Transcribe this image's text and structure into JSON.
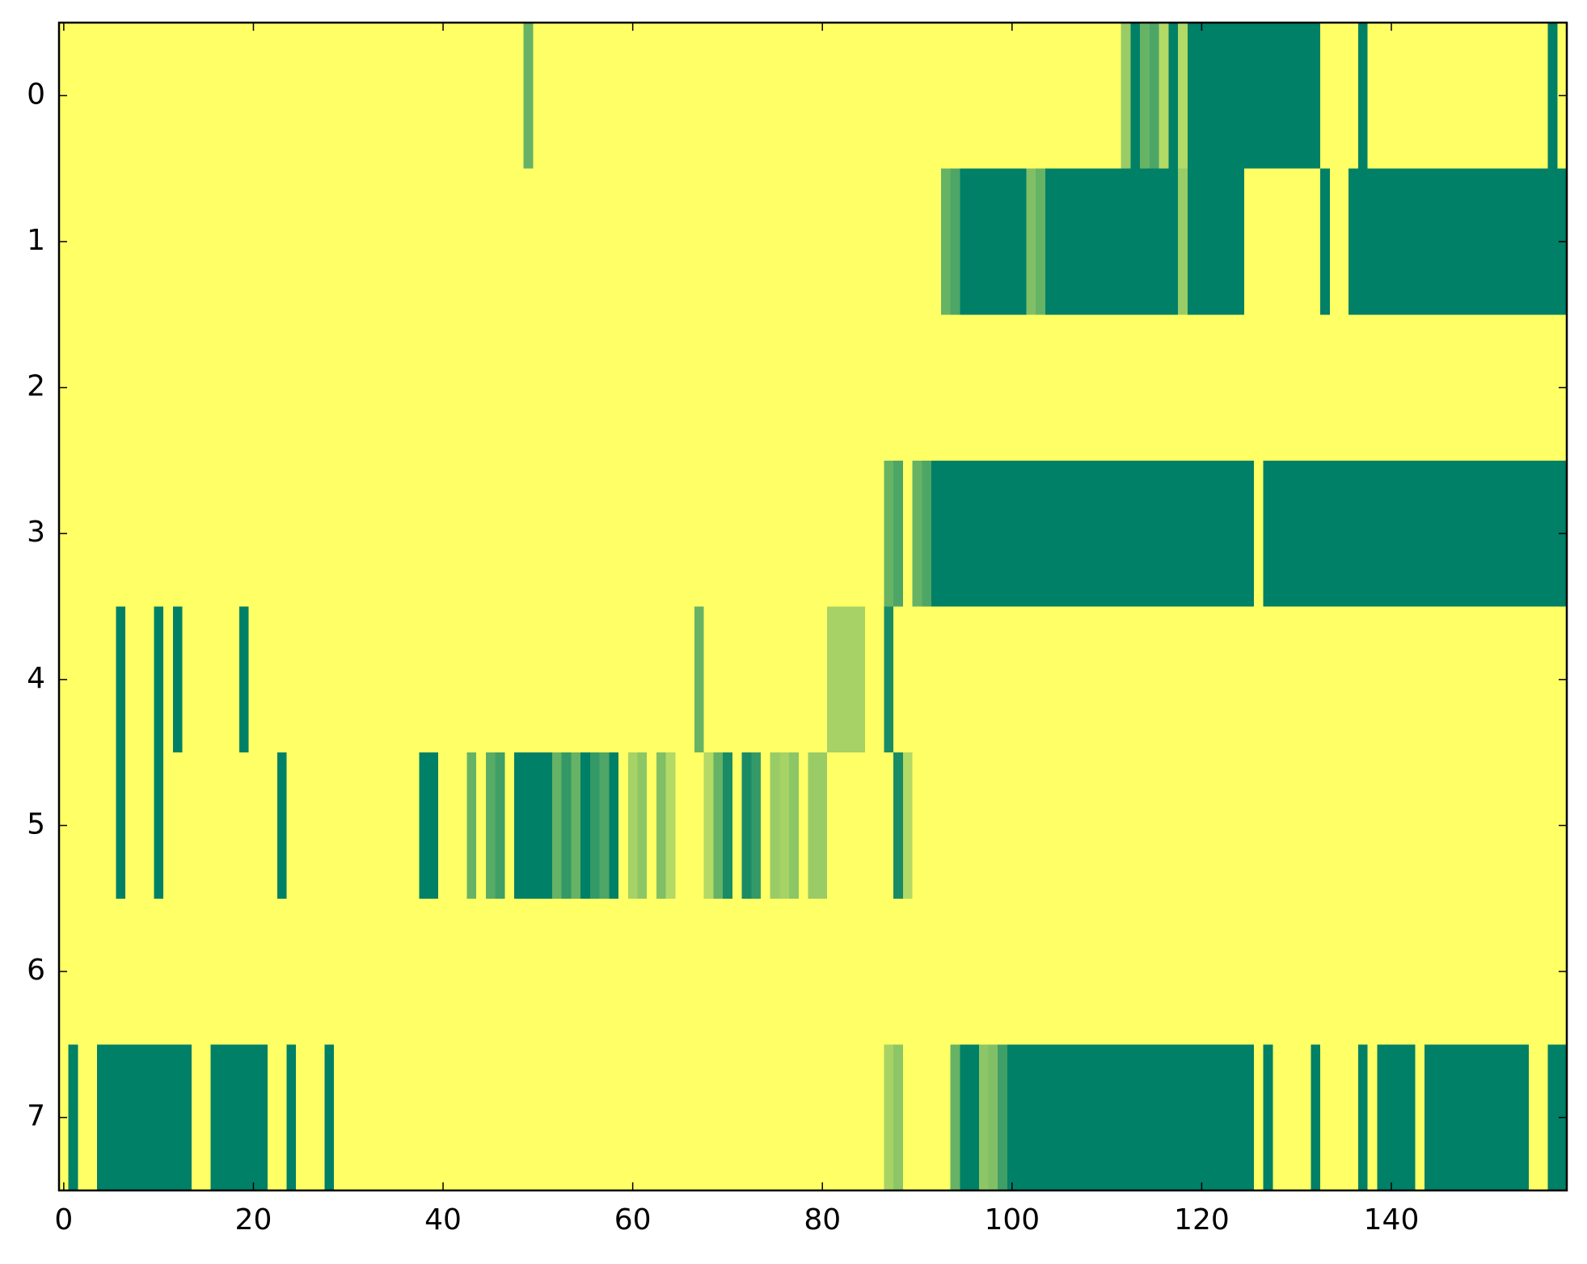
{
  "chart_data": {
    "type": "heatmap",
    "colormap": "summer_r",
    "clim": [
      0,
      1
    ],
    "xlim": [
      -0.5,
      158.5
    ],
    "ylim": [
      7.5,
      -0.5
    ],
    "xticks": [
      0,
      20,
      40,
      60,
      80,
      100,
      120,
      140
    ],
    "yticks": [
      0,
      1,
      2,
      3,
      4,
      5,
      6,
      7
    ],
    "z": [
      [
        0,
        0,
        0,
        0,
        0,
        0,
        0,
        0,
        0,
        0,
        0,
        0,
        0,
        0,
        0,
        0,
        0,
        0,
        0,
        0,
        0,
        0,
        0,
        0,
        0,
        0,
        0,
        0,
        0,
        0,
        0,
        0,
        0,
        0,
        0,
        0,
        0,
        0,
        0,
        0,
        0,
        0,
        0,
        0,
        0,
        0,
        0,
        0,
        0,
        0.6,
        0,
        0,
        0,
        0,
        0,
        0,
        0,
        0,
        0,
        0,
        0,
        0,
        0,
        0,
        0,
        0,
        0,
        0,
        0,
        0,
        0,
        0,
        0,
        0,
        0,
        0,
        0,
        0,
        0,
        0,
        0,
        0,
        0,
        0,
        0,
        0,
        0,
        0,
        0,
        0,
        0,
        0,
        0,
        0,
        0,
        0,
        0,
        0,
        0,
        0,
        0,
        0,
        0,
        0,
        0,
        0,
        0,
        0,
        0,
        0,
        0,
        0,
        0.4,
        1,
        0.6,
        0.7,
        0.3,
        1,
        0.3,
        1,
        1,
        1,
        1,
        1,
        1,
        1,
        1,
        1,
        1,
        1,
        1,
        1,
        1,
        0,
        0,
        0,
        0,
        1,
        0,
        0,
        0,
        0,
        0,
        0,
        0,
        0,
        0,
        0,
        0,
        0,
        0,
        0,
        0,
        0,
        0,
        0,
        0,
        1,
        0
      ],
      [
        0,
        0,
        0,
        0,
        0,
        0,
        0,
        0,
        0,
        0,
        0,
        0,
        0,
        0,
        0,
        0,
        0,
        0,
        0,
        0,
        0,
        0,
        0,
        0,
        0,
        0,
        0,
        0,
        0,
        0,
        0,
        0,
        0,
        0,
        0,
        0,
        0,
        0,
        0,
        0,
        0,
        0,
        0,
        0,
        0,
        0,
        0,
        0,
        0,
        0,
        0,
        0,
        0,
        0,
        0,
        0,
        0,
        0,
        0,
        0,
        0,
        0,
        0,
        0,
        0,
        0,
        0,
        0,
        0,
        0,
        0,
        0,
        0,
        0,
        0,
        0,
        0,
        0,
        0,
        0,
        0,
        0,
        0,
        0,
        0,
        0,
        0,
        0,
        0,
        0,
        0,
        0,
        0,
        0.6,
        0.7,
        1,
        1,
        1,
        1,
        1,
        1,
        1,
        0.5,
        0.6,
        1,
        1,
        1,
        1,
        1,
        1,
        1,
        1,
        1,
        1,
        1,
        1,
        1,
        1,
        0.4,
        1,
        1,
        1,
        1,
        1,
        1,
        0,
        0,
        0,
        0,
        0,
        0,
        0,
        0,
        1,
        0,
        0,
        1,
        1,
        1,
        1,
        1,
        1,
        1,
        1,
        1,
        1,
        1,
        1,
        1,
        1,
        1,
        1,
        1,
        1,
        1,
        1,
        1,
        1,
        1
      ],
      [
        0,
        0,
        0,
        0,
        0,
        0,
        0,
        0,
        0,
        0,
        0,
        0,
        0,
        0,
        0,
        0,
        0,
        0,
        0,
        0,
        0,
        0,
        0,
        0,
        0,
        0,
        0,
        0,
        0,
        0,
        0,
        0,
        0,
        0,
        0,
        0,
        0,
        0,
        0,
        0,
        0,
        0,
        0,
        0,
        0,
        0,
        0,
        0,
        0,
        0,
        0,
        0,
        0,
        0,
        0,
        0,
        0,
        0,
        0,
        0,
        0,
        0,
        0,
        0,
        0,
        0,
        0,
        0,
        0,
        0,
        0,
        0,
        0,
        0,
        0,
        0,
        0,
        0,
        0,
        0,
        0,
        0,
        0,
        0,
        0,
        0,
        0,
        0,
        0,
        0,
        0,
        0,
        0,
        0,
        0,
        0,
        0,
        0,
        0,
        0,
        0,
        0,
        0,
        0,
        0,
        0,
        0,
        0,
        0,
        0,
        0,
        0,
        0,
        0,
        0,
        0,
        0,
        0,
        0,
        0,
        0,
        0,
        0,
        0,
        0,
        0,
        0,
        0,
        0,
        0,
        0,
        0,
        0,
        0,
        0,
        0,
        0,
        0,
        0,
        0,
        0,
        0,
        0,
        0,
        0,
        0,
        0,
        0,
        0,
        0,
        0,
        0,
        0,
        0,
        0,
        0,
        0,
        0,
        0
      ],
      [
        0,
        0,
        0,
        0,
        0,
        0,
        0,
        0,
        0,
        0,
        0,
        0,
        0,
        0,
        0,
        0,
        0,
        0,
        0,
        0,
        0,
        0,
        0,
        0,
        0,
        0,
        0,
        0,
        0,
        0,
        0,
        0,
        0,
        0,
        0,
        0,
        0,
        0,
        0,
        0,
        0,
        0,
        0,
        0,
        0,
        0,
        0,
        0,
        0,
        0,
        0,
        0,
        0,
        0,
        0,
        0,
        0,
        0,
        0,
        0,
        0,
        0,
        0,
        0,
        0,
        0,
        0,
        0,
        0,
        0,
        0,
        0,
        0,
        0,
        0,
        0,
        0,
        0,
        0,
        0,
        0,
        0,
        0,
        0,
        0,
        0,
        0,
        0.6,
        0.7,
        0,
        0.6,
        0.7,
        1,
        1,
        1,
        1,
        1,
        1,
        1,
        1,
        1,
        1,
        1,
        1,
        1,
        1,
        1,
        1,
        1,
        1,
        1,
        1,
        1,
        1,
        1,
        1,
        1,
        1,
        1,
        1,
        1,
        1,
        1,
        1,
        1,
        1,
        0,
        1,
        1,
        1,
        1,
        1,
        1,
        1,
        1,
        1,
        1,
        1,
        1,
        1,
        1,
        1,
        1,
        1,
        1,
        1,
        1,
        1,
        1,
        1,
        1,
        1,
        1,
        1,
        1,
        1,
        1,
        1,
        1
      ],
      [
        0,
        0,
        0,
        0,
        0,
        0,
        1,
        0,
        0,
        0,
        1,
        0,
        1,
        0,
        0,
        0,
        0,
        0,
        0,
        1,
        0,
        0,
        0,
        0,
        0,
        0,
        0,
        0,
        0,
        0,
        0,
        0,
        0,
        0,
        0,
        0,
        0,
        0,
        0,
        0,
        0,
        0,
        0,
        0,
        0,
        0,
        0,
        0,
        0,
        0,
        0,
        0,
        0,
        0,
        0,
        0,
        0,
        0,
        0,
        0,
        0,
        0,
        0,
        0,
        0,
        0,
        0,
        0.6,
        0,
        0,
        0,
        0,
        0,
        0,
        0,
        0,
        0,
        0,
        0,
        0,
        0,
        0.35,
        0.35,
        0.35,
        0.35,
        0,
        0,
        0.9,
        0,
        0,
        0,
        0,
        0,
        0,
        0,
        0,
        0,
        0,
        0,
        0,
        0,
        0,
        0,
        0,
        0,
        0,
        0,
        0,
        0,
        0,
        0,
        0,
        0,
        0,
        0,
        0,
        0,
        0,
        0,
        0,
        0,
        0,
        0,
        0,
        0,
        0,
        0,
        0,
        0,
        0,
        0,
        0,
        0,
        0,
        0,
        0,
        0,
        0,
        0,
        0,
        0,
        0,
        0,
        0,
        0,
        0,
        0,
        0,
        0,
        0,
        0,
        0,
        0,
        0,
        0,
        0,
        0,
        0,
        0
      ],
      [
        0,
        0,
        0,
        0,
        0,
        0,
        1,
        0,
        0,
        0,
        1,
        0,
        0,
        0,
        0,
        0,
        0,
        0,
        0,
        0,
        0,
        0,
        0,
        1,
        0,
        0,
        0,
        0,
        0,
        0,
        0,
        0,
        0,
        0,
        0,
        0,
        0,
        0,
        1,
        1,
        0,
        0,
        0,
        0.6,
        0,
        0.65,
        0.75,
        0,
        1,
        1,
        1,
        1,
        0.6,
        0.8,
        0.6,
        1,
        0.8,
        0.7,
        1,
        0,
        0.35,
        0.45,
        0,
        0.5,
        0.3,
        0,
        0,
        0,
        0.3,
        0.6,
        0.9,
        0,
        0.9,
        0.8,
        0,
        0.4,
        0.35,
        0.45,
        0,
        0.4,
        0.4,
        0,
        0,
        0,
        0,
        0,
        0,
        0,
        0.9,
        0.3,
        0,
        0,
        0,
        0,
        0,
        0,
        0,
        0,
        0,
        0,
        0,
        0,
        0,
        0,
        0,
        0,
        0,
        0,
        0,
        0,
        0,
        0,
        0,
        0,
        0,
        0,
        0,
        0,
        0,
        0,
        0,
        0,
        0,
        0,
        0,
        0,
        0,
        0,
        0,
        0,
        0,
        0,
        0,
        0,
        0,
        0,
        0,
        0,
        0,
        0,
        0,
        0,
        0,
        0,
        0,
        0,
        0,
        0,
        0,
        0,
        0,
        0,
        0,
        0,
        0,
        0,
        0,
        0,
        0
      ],
      [
        0,
        0,
        0,
        0,
        0,
        0,
        0,
        0,
        0,
        0,
        0,
        0,
        0,
        0,
        0,
        0,
        0,
        0,
        0,
        0,
        0,
        0,
        0,
        0,
        0,
        0,
        0,
        0,
        0,
        0,
        0,
        0,
        0,
        0,
        0,
        0,
        0,
        0,
        0,
        0,
        0,
        0,
        0,
        0,
        0,
        0,
        0,
        0,
        0,
        0,
        0,
        0,
        0,
        0,
        0,
        0,
        0,
        0,
        0,
        0,
        0,
        0,
        0,
        0,
        0,
        0,
        0,
        0,
        0,
        0,
        0,
        0,
        0,
        0,
        0,
        0,
        0,
        0,
        0,
        0,
        0,
        0,
        0,
        0,
        0,
        0,
        0,
        0,
        0,
        0,
        0,
        0,
        0,
        0,
        0,
        0,
        0,
        0,
        0,
        0,
        0,
        0,
        0,
        0,
        0,
        0,
        0,
        0,
        0,
        0,
        0,
        0,
        0,
        0,
        0,
        0,
        0,
        0,
        0,
        0,
        0,
        0,
        0,
        0,
        0,
        0,
        0,
        0,
        0,
        0,
        0,
        0,
        0,
        0,
        0,
        0,
        0,
        0,
        0,
        0,
        0,
        0,
        0,
        0,
        0,
        0,
        0,
        0,
        0,
        0,
        0,
        0,
        0,
        0,
        0,
        0,
        0,
        0,
        0
      ],
      [
        0,
        1,
        0,
        0,
        1,
        1,
        1,
        1,
        1,
        1,
        1,
        1,
        1,
        1,
        0,
        0,
        1,
        1,
        1,
        1,
        1,
        1,
        0,
        0,
        1,
        0,
        0,
        0,
        1,
        0,
        0,
        0,
        0,
        0,
        0,
        0,
        0,
        0,
        0,
        0,
        0,
        0,
        0,
        0,
        0,
        0,
        0,
        0,
        0,
        0,
        0,
        0,
        0,
        0,
        0,
        0,
        0,
        0,
        0,
        0,
        0,
        0,
        0,
        0,
        0,
        0,
        0,
        0,
        0,
        0,
        0,
        0,
        0,
        0,
        0,
        0,
        0,
        0,
        0,
        0,
        0,
        0,
        0,
        0,
        0,
        0,
        0,
        0.35,
        0.45,
        0,
        0,
        0,
        0,
        0,
        0.6,
        1,
        1,
        0.45,
        0.5,
        0.75,
        1,
        1,
        1,
        1,
        1,
        1,
        1,
        1,
        1,
        1,
        1,
        1,
        1,
        1,
        1,
        1,
        1,
        1,
        1,
        1,
        1,
        1,
        1,
        1,
        1,
        1,
        0,
        1,
        0,
        0,
        0,
        0,
        1,
        0,
        0,
        0,
        0,
        1,
        0,
        1,
        1,
        1,
        1,
        0,
        1,
        1,
        1,
        1,
        1,
        1,
        1,
        1,
        1,
        1,
        1,
        0,
        0,
        1,
        1
      ]
    ]
  }
}
